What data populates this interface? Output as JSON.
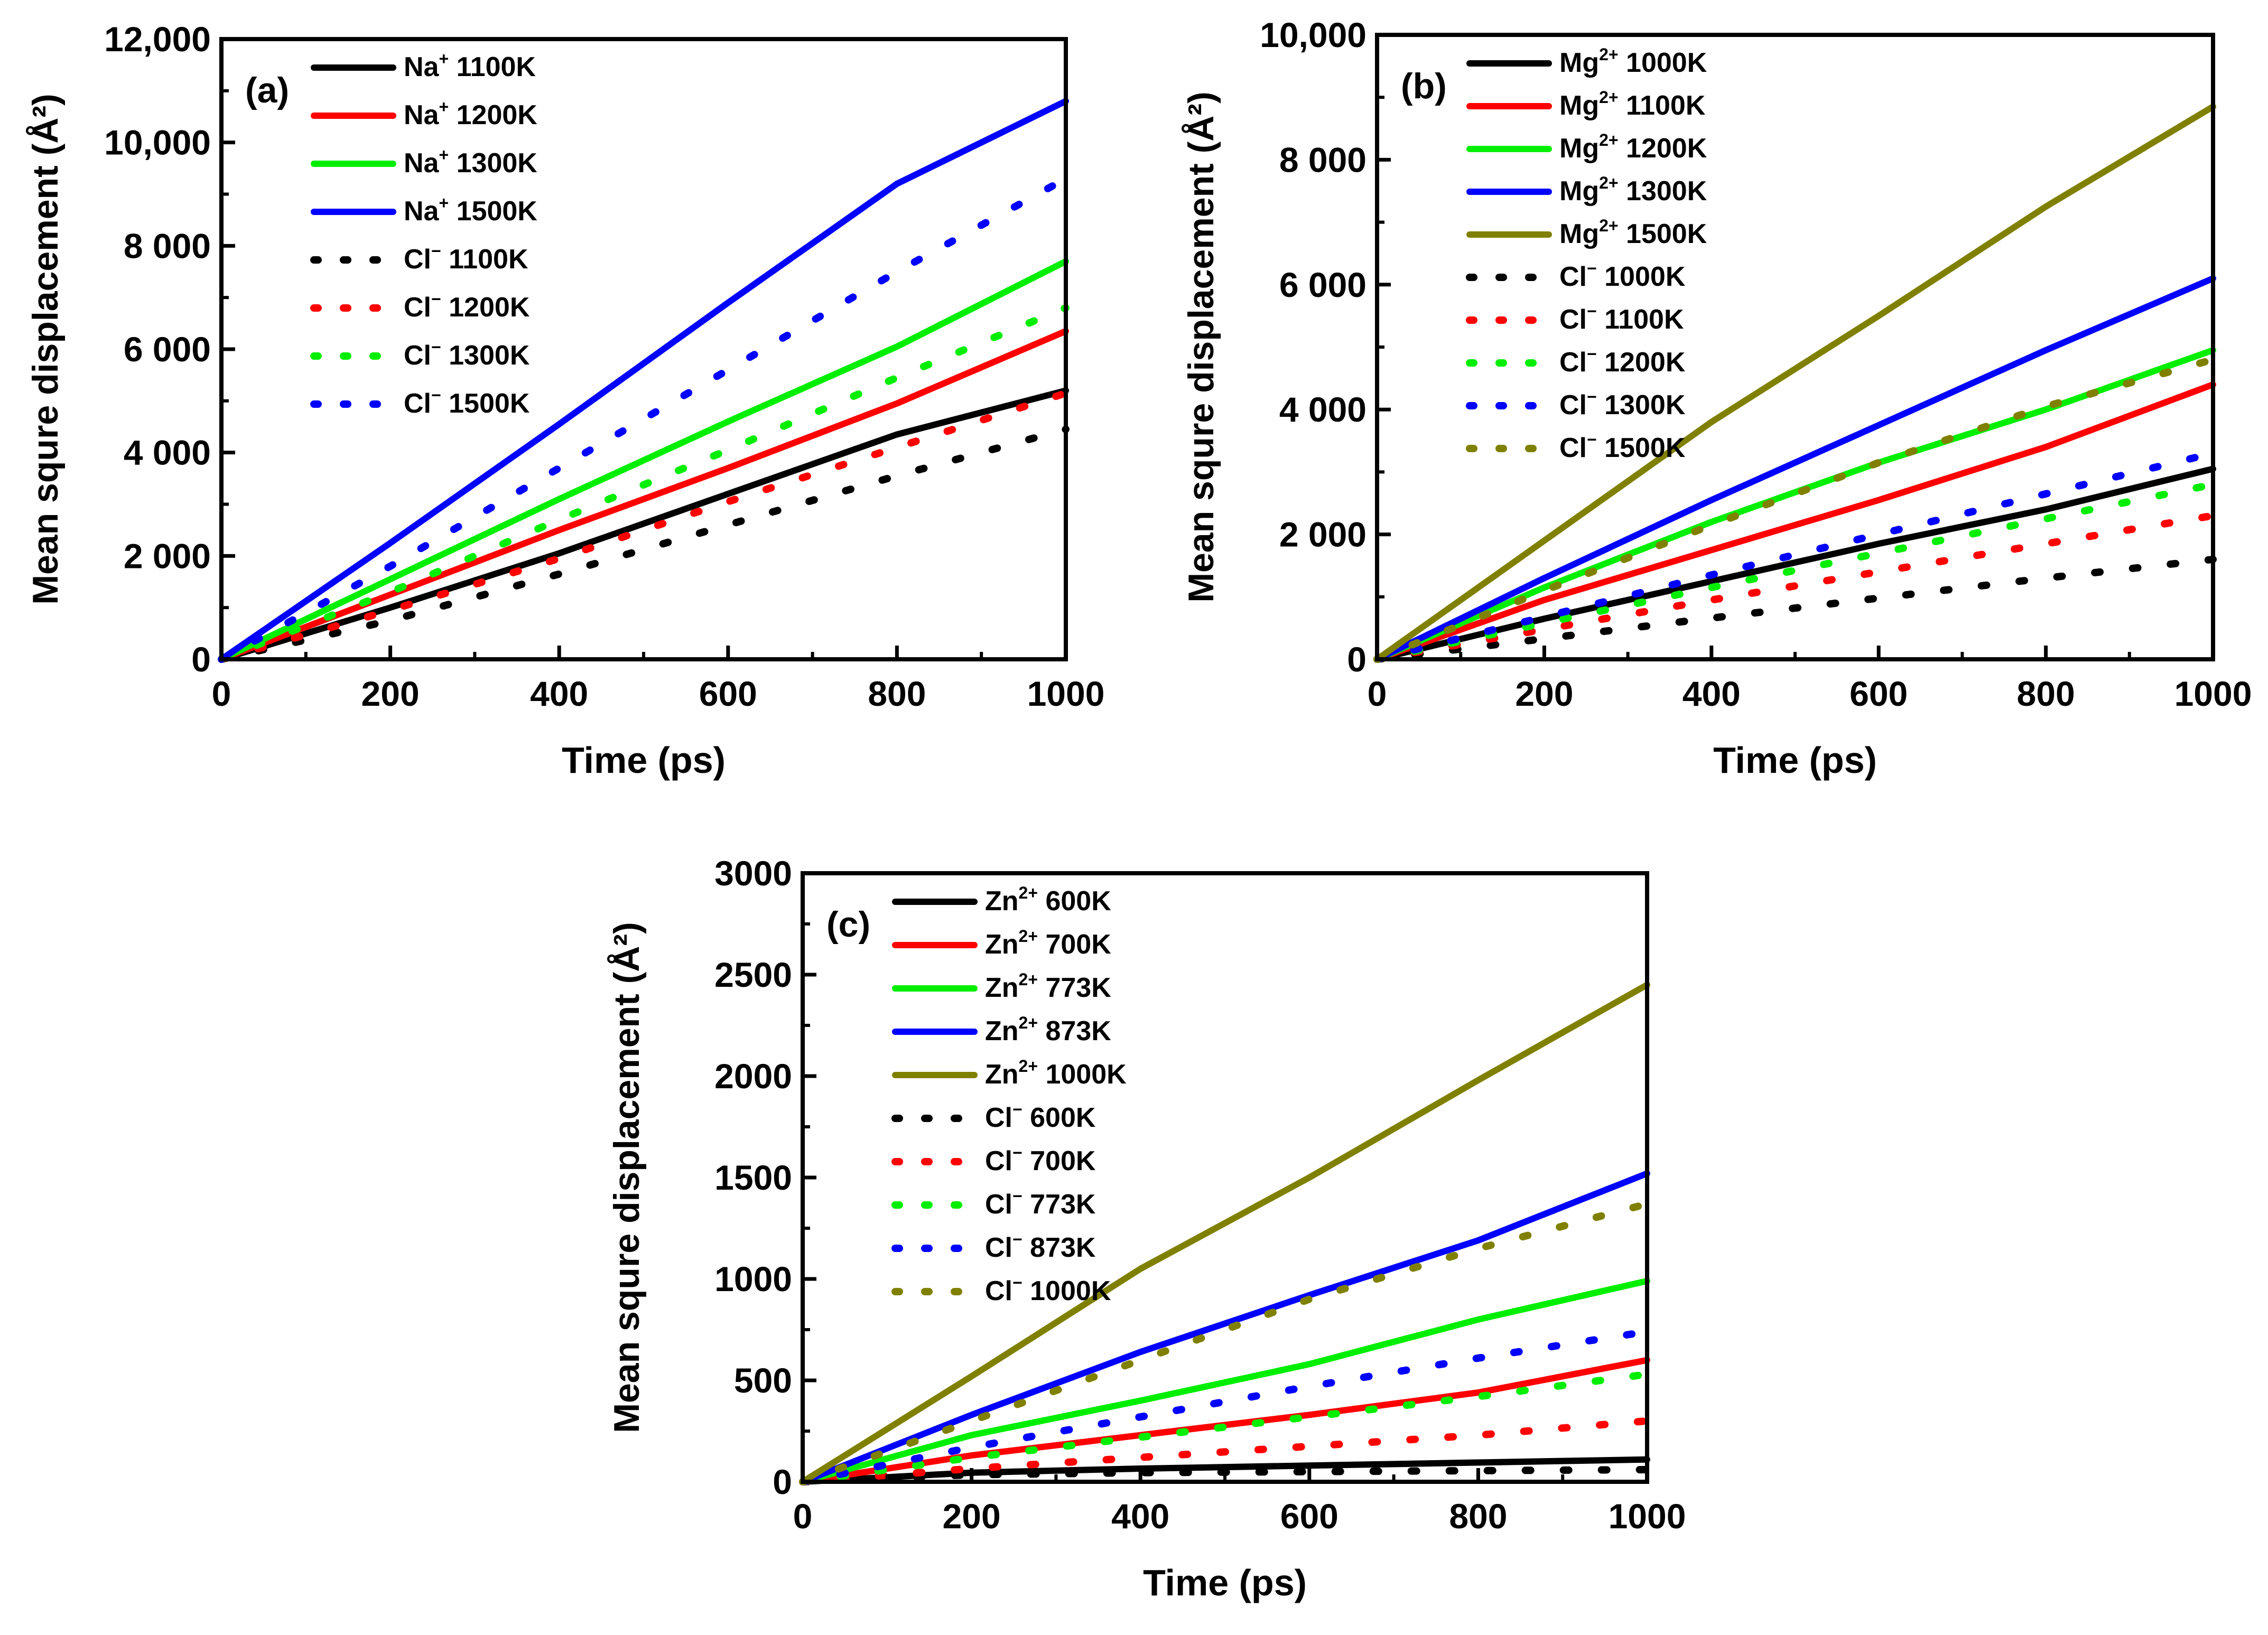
{
  "chart_data": [
    {
      "type": "line",
      "panel_label": "(a)",
      "xlabel": "Time (ps)",
      "ylabel": "Mean squre displacement (Å²)",
      "xlim": [
        0,
        1000
      ],
      "ylim": [
        0,
        12000
      ],
      "xticks": [
        0,
        200,
        400,
        600,
        800,
        1000
      ],
      "xtick_labels": [
        "0",
        "200",
        "400",
        "600",
        "800",
        "1000"
      ],
      "yticks": [
        0,
        2000,
        4000,
        6000,
        8000,
        10000,
        12000
      ],
      "ytick_labels": [
        "0",
        "2 000",
        "4 000",
        "6 000",
        "8 000",
        "10,000",
        "12,000"
      ],
      "legend_position": "top-left",
      "x": [
        0,
        200,
        400,
        600,
        800,
        1000
      ],
      "series": [
        {
          "ion": "Na",
          "charge": "+",
          "temp": "1100K",
          "color": "#000000",
          "style": "solid",
          "values": [
            0,
            1000,
            2050,
            3200,
            4350,
            5200
          ]
        },
        {
          "ion": "Na",
          "charge": "+",
          "temp": "1200K",
          "color": "#ff0000",
          "style": "solid",
          "values": [
            0,
            1250,
            2500,
            3700,
            4950,
            6350
          ]
        },
        {
          "ion": "Na",
          "charge": "+",
          "temp": "1300K",
          "color": "#00ee00",
          "style": "solid",
          "values": [
            0,
            1550,
            3100,
            4600,
            6050,
            7700
          ]
        },
        {
          "ion": "Na",
          "charge": "+",
          "temp": "1500K",
          "color": "#0000ff",
          "style": "solid",
          "values": [
            0,
            2250,
            4550,
            6900,
            9200,
            10800
          ]
        },
        {
          "ion": "Cl",
          "charge": "−",
          "temp": "1100K",
          "color": "#000000",
          "style": "dotted",
          "values": [
            0,
            750,
            1650,
            2600,
            3550,
            4450
          ]
        },
        {
          "ion": "Cl",
          "charge": "−",
          "temp": "1200K",
          "color": "#ff0000",
          "style": "dotted",
          "values": [
            0,
            950,
            1950,
            3050,
            4100,
            5150
          ]
        },
        {
          "ion": "Cl",
          "charge": "−",
          "temp": "1300K",
          "color": "#00ee00",
          "style": "dotted",
          "values": [
            0,
            1300,
            2700,
            4050,
            5450,
            6800
          ]
        },
        {
          "ion": "Cl",
          "charge": "−",
          "temp": "1500K",
          "color": "#0000ff",
          "style": "dotted",
          "values": [
            0,
            1800,
            3700,
            5600,
            7500,
            9300
          ]
        }
      ]
    },
    {
      "type": "line",
      "panel_label": "(b)",
      "xlabel": "Time (ps)",
      "ylabel": "Mean squre displacement (Å²)",
      "xlim": [
        0,
        1000
      ],
      "ylim": [
        0,
        10000
      ],
      "xticks": [
        0,
        200,
        400,
        600,
        800,
        1000
      ],
      "xtick_labels": [
        "0",
        "200",
        "400",
        "600",
        "800",
        "1000"
      ],
      "yticks": [
        0,
        2000,
        4000,
        6000,
        8000,
        10000
      ],
      "ytick_labels": [
        "0",
        "2 000",
        "4 000",
        "6 000",
        "8 000",
        "10,000"
      ],
      "legend_position": "top-left",
      "x": [
        0,
        200,
        400,
        600,
        800,
        1000
      ],
      "series": [
        {
          "ion": "Mg",
          "charge": "2+",
          "temp": "1000K",
          "color": "#000000",
          "style": "solid",
          "values": [
            0,
            650,
            1250,
            1850,
            2400,
            3050
          ]
        },
        {
          "ion": "Mg",
          "charge": "2+",
          "temp": "1100K",
          "color": "#ff0000",
          "style": "solid",
          "values": [
            0,
            950,
            1750,
            2550,
            3400,
            4400
          ]
        },
        {
          "ion": "Mg",
          "charge": "2+",
          "temp": "1200K",
          "color": "#00ee00",
          "style": "solid",
          "values": [
            0,
            1150,
            2200,
            3150,
            4000,
            4950
          ]
        },
        {
          "ion": "Mg",
          "charge": "2+",
          "temp": "1300K",
          "color": "#0000ff",
          "style": "solid",
          "values": [
            0,
            1300,
            2550,
            3750,
            4950,
            6100
          ]
        },
        {
          "ion": "Mg",
          "charge": "2+",
          "temp": "1500K",
          "color": "#808000",
          "style": "solid",
          "values": [
            0,
            1900,
            3800,
            5500,
            7250,
            8850
          ]
        },
        {
          "ion": "Cl",
          "charge": "−",
          "temp": "1000K",
          "color": "#000000",
          "style": "dotted",
          "values": [
            0,
            330,
            660,
            980,
            1300,
            1600
          ]
        },
        {
          "ion": "Cl",
          "charge": "−",
          "temp": "1100K",
          "color": "#ff0000",
          "style": "dotted",
          "values": [
            0,
            480,
            950,
            1400,
            1850,
            2300
          ]
        },
        {
          "ion": "Cl",
          "charge": "−",
          "temp": "1200K",
          "color": "#00ee00",
          "style": "dotted",
          "values": [
            0,
            580,
            1150,
            1700,
            2250,
            2800
          ]
        },
        {
          "ion": "Cl",
          "charge": "−",
          "temp": "1300K",
          "color": "#0000ff",
          "style": "dotted",
          "values": [
            0,
            680,
            1350,
            2000,
            2650,
            3300
          ]
        },
        {
          "ion": "Cl",
          "charge": "−",
          "temp": "1500K",
          "color": "#808000",
          "style": "dotted",
          "values": [
            0,
            1100,
            2150,
            3150,
            4050,
            4800
          ]
        }
      ]
    },
    {
      "type": "line",
      "panel_label": "(c)",
      "xlabel": "Time (ps)",
      "ylabel": "Mean squre displacement (Å²)",
      "xlim": [
        0,
        1000
      ],
      "ylim": [
        0,
        3000
      ],
      "xticks": [
        0,
        200,
        400,
        600,
        800,
        1000
      ],
      "xtick_labels": [
        "0",
        "200",
        "400",
        "600",
        "800",
        "1000"
      ],
      "yticks": [
        0,
        500,
        1000,
        1500,
        2000,
        2500,
        3000
      ],
      "ytick_labels": [
        "0",
        "500",
        "1000",
        "1500",
        "2000",
        "2500",
        "3000"
      ],
      "legend_position": "top-left",
      "x": [
        0,
        200,
        400,
        600,
        800,
        1000
      ],
      "series": [
        {
          "ion": "Zn",
          "charge": "2+",
          "temp": "600K",
          "color": "#000000",
          "style": "solid",
          "values": [
            0,
            45,
            65,
            80,
            95,
            110
          ]
        },
        {
          "ion": "Zn",
          "charge": "2+",
          "temp": "700K",
          "color": "#ff0000",
          "style": "solid",
          "values": [
            0,
            130,
            230,
            330,
            440,
            600
          ]
        },
        {
          "ion": "Zn",
          "charge": "2+",
          "temp": "773K",
          "color": "#00ee00",
          "style": "solid",
          "values": [
            0,
            230,
            400,
            580,
            800,
            990
          ]
        },
        {
          "ion": "Zn",
          "charge": "2+",
          "temp": "873K",
          "color": "#0000ff",
          "style": "solid",
          "values": [
            0,
            330,
            640,
            920,
            1190,
            1520
          ]
        },
        {
          "ion": "Zn",
          "charge": "2+",
          "temp": "1000K",
          "color": "#808000",
          "style": "solid",
          "values": [
            0,
            520,
            1050,
            1500,
            1980,
            2450
          ]
        },
        {
          "ion": "Cl",
          "charge": "−",
          "temp": "600K",
          "color": "#000000",
          "style": "dotted",
          "values": [
            0,
            35,
            45,
            50,
            55,
            60
          ]
        },
        {
          "ion": "Cl",
          "charge": "−",
          "temp": "700K",
          "color": "#ff0000",
          "style": "dotted",
          "values": [
            0,
            65,
            120,
            175,
            230,
            300
          ]
        },
        {
          "ion": "Cl",
          "charge": "−",
          "temp": "773K",
          "color": "#00ee00",
          "style": "dotted",
          "values": [
            0,
            120,
            220,
            320,
            420,
            530
          ]
        },
        {
          "ion": "Cl",
          "charge": "−",
          "temp": "873K",
          "color": "#0000ff",
          "style": "dotted",
          "values": [
            0,
            170,
            320,
            470,
            610,
            740
          ]
        },
        {
          "ion": "Cl",
          "charge": "−",
          "temp": "1000K",
          "color": "#808000",
          "style": "dotted",
          "values": [
            0,
            300,
            600,
            900,
            1150,
            1370
          ]
        }
      ]
    }
  ]
}
